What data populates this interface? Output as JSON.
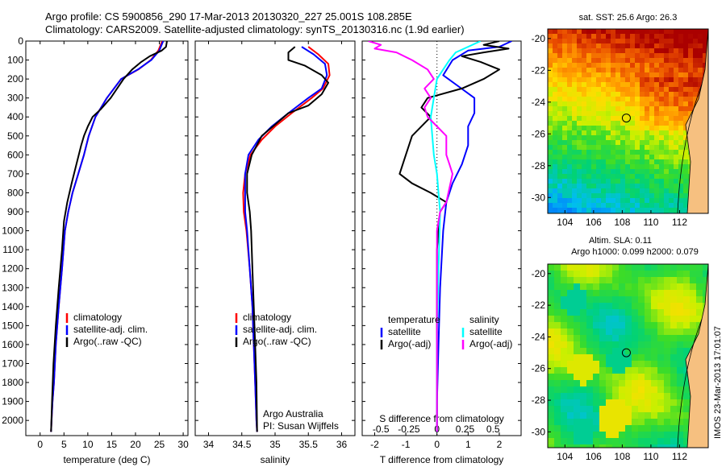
{
  "header": {
    "line1": "Argo profile: CS 5900856_290 17-Mar-2013 20130320_227 25.001S 108.285E",
    "line2": "Climatology: CARS2009. Satellite-adjusted climatology: synTS_20130316.nc (1.9d earlier)"
  },
  "chart_data": [
    {
      "type": "line",
      "panel": "temperature",
      "xlabel": "temperature (deg C)",
      "ylabel": "",
      "xlim": [
        -3,
        31
      ],
      "ylim": [
        2080,
        0
      ],
      "xticks": [
        0,
        5,
        10,
        15,
        20,
        25,
        30
      ],
      "yticks": [
        0,
        100,
        200,
        300,
        400,
        500,
        600,
        700,
        800,
        900,
        1000,
        1100,
        1200,
        1300,
        1400,
        1500,
        1600,
        1700,
        1800,
        1900,
        2000
      ],
      "series": [
        {
          "name": "climatology",
          "color": "#ff0000",
          "x": [
            25.6,
            24.8,
            23.2,
            20.6,
            17.0,
            14.0,
            11.6,
            10.2,
            9.2,
            8.0,
            6.8,
            5.9,
            5.2,
            4.6,
            3.9,
            3.3,
            2.9,
            2.6,
            2.4,
            2.3
          ],
          "y": [
            0,
            50,
            100,
            150,
            200,
            300,
            400,
            500,
            600,
            700,
            800,
            900,
            1000,
            1200,
            1400,
            1600,
            1800,
            1900,
            2000,
            2060
          ]
        },
        {
          "name": "satellite-adj. clim.",
          "color": "#0000ff",
          "x": [
            25.8,
            25.0,
            23.3,
            20.5,
            17.0,
            14.0,
            11.6,
            10.2,
            9.2,
            8.0,
            6.8,
            5.9,
            5.2,
            4.6,
            3.9,
            3.3,
            2.9,
            2.6,
            2.4,
            2.3
          ],
          "y": [
            0,
            50,
            100,
            150,
            200,
            300,
            400,
            500,
            600,
            700,
            800,
            900,
            1000,
            1200,
            1400,
            1600,
            1800,
            1900,
            2000,
            2060
          ]
        },
        {
          "name": "Argo(..raw -QC)",
          "color": "#000000",
          "x": [
            26.6,
            26.4,
            25.5,
            23.0,
            21.2,
            19.3,
            17.5,
            14.8,
            12.7,
            11.0,
            10.0,
            9.2,
            8.6,
            7.6,
            6.6,
            5.7,
            5.0,
            4.6,
            3.9,
            3.3,
            2.8,
            2.5,
            2.3
          ],
          "y": [
            0,
            30,
            50,
            80,
            110,
            150,
            200,
            300,
            360,
            400,
            450,
            500,
            550,
            650,
            750,
            850,
            950,
            1100,
            1300,
            1500,
            1700,
            1900,
            2060
          ]
        }
      ],
      "legend_position": "lower-center"
    },
    {
      "type": "line",
      "panel": "salinity",
      "xlabel": "salinity",
      "xlim": [
        33.8,
        36.2
      ],
      "ylim": [
        2080,
        0
      ],
      "xticks": [
        34,
        34.5,
        35,
        35.5,
        36
      ],
      "series": [
        {
          "name": "climatology",
          "color": "#ff0000",
          "x": [
            35.5,
            35.65,
            35.8,
            35.82,
            35.72,
            35.55,
            35.25,
            35.0,
            34.8,
            34.63,
            34.55,
            34.52,
            34.53,
            34.57,
            34.62,
            34.66,
            34.68,
            34.7,
            34.72,
            34.73
          ],
          "y": [
            30,
            70,
            120,
            180,
            250,
            300,
            380,
            450,
            520,
            600,
            700,
            800,
            900,
            1000,
            1200,
            1400,
            1600,
            1800,
            2000,
            2060
          ]
        },
        {
          "name": "satellite-adj. clim.",
          "color": "#0000ff",
          "x": [
            35.4,
            35.58,
            35.75,
            35.78,
            35.7,
            35.5,
            35.2,
            34.95,
            34.75,
            34.6,
            34.55,
            34.55,
            34.55,
            34.58,
            34.62,
            34.66,
            34.68,
            34.7,
            34.72,
            34.73
          ],
          "y": [
            30,
            70,
            120,
            180,
            250,
            300,
            380,
            450,
            520,
            600,
            700,
            800,
            900,
            1000,
            1200,
            1400,
            1600,
            1800,
            2000,
            2060
          ]
        },
        {
          "name": "Argo(..raw -QC)",
          "color": "#000000",
          "x": [
            35.3,
            35.2,
            35.2,
            35.45,
            35.7,
            35.8,
            35.7,
            35.5,
            35.2,
            35.0,
            34.8,
            34.65,
            34.58,
            34.58,
            34.62,
            34.64,
            34.66,
            34.68,
            34.7,
            34.72,
            34.73
          ],
          "y": [
            30,
            60,
            100,
            130,
            180,
            220,
            280,
            340,
            380,
            440,
            500,
            600,
            700,
            800,
            900,
            1000,
            1200,
            1400,
            1600,
            1800,
            2060
          ]
        }
      ],
      "annotation": {
        "line1": "Argo Australia",
        "line2": "PI: Susan Wijffels"
      },
      "legend_position": "lower-center"
    },
    {
      "type": "line",
      "panel": "difference",
      "xlabel": "T difference from climatology",
      "xlabel2": "S difference from climatology",
      "xlim": [
        -2.4,
        2.7
      ],
      "ylim": [
        2080,
        0
      ],
      "xticks_T": [
        "-2",
        "-1",
        "0",
        "1",
        "2"
      ],
      "xticks_T_values": [
        -2,
        -1,
        0,
        1,
        2
      ],
      "xticks_S": [
        "-0.5",
        "-0.25",
        "0",
        "0.25",
        "0.5"
      ],
      "xticks_S_values": [
        -1.8,
        -0.9,
        0,
        0.9,
        1.8
      ],
      "series": [
        {
          "name": "temperature satellite",
          "color": "#0000ff",
          "x": [
            2.4,
            2.0,
            1.0,
            0.5,
            0.2,
            0.7,
            1.2,
            1.2,
            1.0,
            1.0,
            1.0,
            0.8,
            0.5,
            0.3,
            0.2,
            0.1,
            0.05,
            0.0,
            0.0
          ],
          "y": [
            0,
            30,
            50,
            100,
            180,
            240,
            300,
            380,
            450,
            500,
            550,
            650,
            750,
            850,
            1000,
            1300,
            1600,
            1900,
            2060
          ]
        },
        {
          "name": "temperature Argo(-adj)",
          "color": "#000000",
          "x": [
            2.0,
            1.5,
            2.3,
            1.5,
            0.8,
            1.4,
            2.0,
            1.5,
            0.8,
            -0.3,
            -0.5,
            -0.2,
            -0.8,
            -1.0,
            -1.2,
            -0.8,
            -0.2,
            0.3,
            0.1,
            0.0,
            0.0,
            0.0
          ],
          "y": [
            0,
            20,
            40,
            60,
            80,
            110,
            150,
            200,
            250,
            300,
            350,
            400,
            500,
            600,
            700,
            750,
            800,
            850,
            900,
            1100,
            1500,
            2060
          ]
        },
        {
          "name": "salinity satellite",
          "color": "#00ffff",
          "x": [
            1.4,
            1.0,
            0.6,
            0.4,
            0.2,
            0.0,
            -0.1,
            -0.2,
            -0.15,
            -0.1,
            0.0,
            0.05,
            0.1,
            0.05,
            0.0,
            0.0
          ],
          "y": [
            0,
            30,
            60,
            100,
            150,
            200,
            300,
            400,
            500,
            600,
            700,
            800,
            900,
            1200,
            1600,
            2060
          ]
        },
        {
          "name": "salinity Argo(-adj)",
          "color": "#ff00ff",
          "x": [
            -2.2,
            -1.8,
            -2.0,
            -1.3,
            -0.8,
            -0.3,
            -0.1,
            -0.4,
            -0.2,
            -0.4,
            -0.3,
            0.0,
            0.3,
            0.3,
            0.3,
            0.4,
            0.5,
            0.3,
            0.1,
            0.0,
            0.0,
            0.0
          ],
          "y": [
            0,
            20,
            40,
            60,
            100,
            150,
            200,
            250,
            300,
            350,
            400,
            450,
            500,
            550,
            600,
            650,
            700,
            850,
            900,
            1000,
            1500,
            2060
          ]
        }
      ],
      "legend_temperature": "temperature",
      "legend_salinity": "salinity",
      "legend_position": "lower-center"
    },
    {
      "type": "heatmap",
      "panel": "sst-map",
      "title": "sat. SST: 25.6 Argo: 26.3",
      "xlim": [
        102.8,
        114.0
      ],
      "ylim": [
        -31.0,
        -19.4
      ],
      "xticks": [
        104,
        106,
        108,
        110,
        112
      ],
      "yticks": [
        -20,
        -22,
        -24,
        -26,
        -28,
        -30
      ],
      "marker": {
        "lon": 108.285,
        "lat": -25.001
      }
    },
    {
      "type": "heatmap",
      "panel": "sla-map",
      "title": "Altim. SLA: 0.11",
      "subtitle": "Argo h1000: 0.099 h2000: 0.079",
      "xlim": [
        102.8,
        114.0
      ],
      "ylim": [
        -31.0,
        -19.4
      ],
      "xticks": [
        104,
        106,
        108,
        110,
        112
      ],
      "yticks": [
        -20,
        -22,
        -24,
        -26,
        -28,
        -30
      ],
      "marker": {
        "lon": 108.285,
        "lat": -25.001
      }
    }
  ],
  "watermark": "IMOS 23-Mar-2013 17:01:07"
}
